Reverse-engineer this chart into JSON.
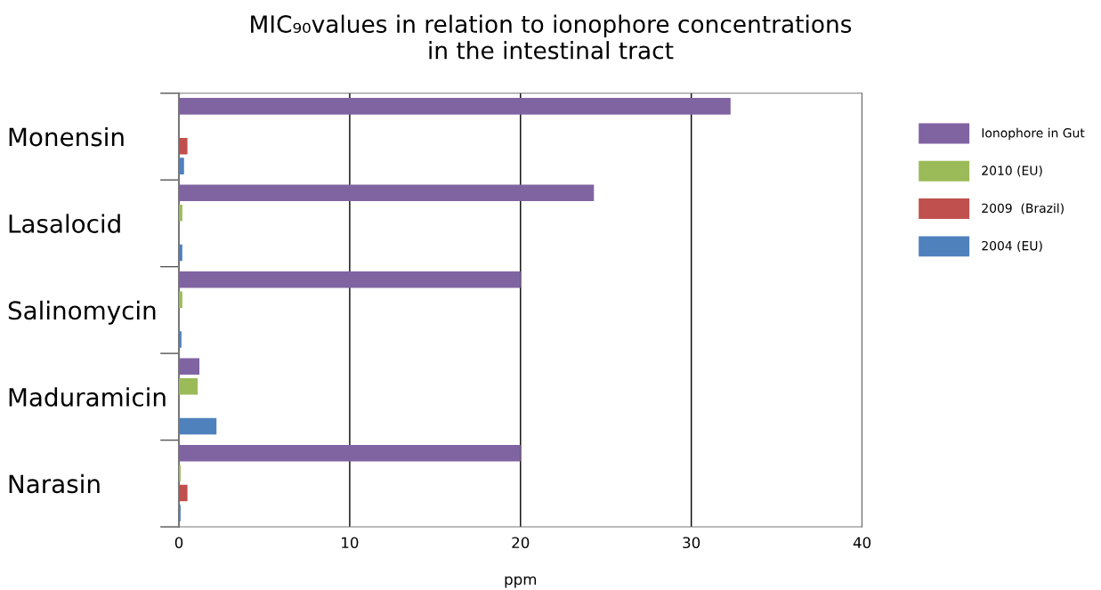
{
  "chart_data": {
    "type": "bar",
    "orientation": "horizontal",
    "title": "MIC₉₀values in relation to ionophore concentrations\nin the intestinal tract",
    "xlabel": "ppm",
    "categories": [
      "Monensin",
      "Lasalocid",
      "Salinomycin",
      "Maduramicin",
      "Narasin"
    ],
    "series": [
      {
        "name": "Ionophore in Gut",
        "color": "#8064a2",
        "values": [
          32.3,
          24.3,
          20,
          1.2,
          20
        ]
      },
      {
        "name": "2010 (EU)",
        "color": "#9bbb59",
        "values": [
          null,
          0.2,
          0.2,
          1.1,
          0.1
        ]
      },
      {
        "name": "2009  (Brazil)",
        "color": "#c0504d",
        "values": [
          0.5,
          null,
          null,
          null,
          0.5
        ]
      },
      {
        "name": "2004 (EU)",
        "color": "#4f81bd",
        "values": [
          0.3,
          0.2,
          0.15,
          2.2,
          0.1
        ]
      }
    ],
    "xlim": [
      0,
      40
    ],
    "xticks": [
      0,
      10,
      20,
      30,
      40
    ],
    "grid": "x",
    "legend": "right"
  }
}
